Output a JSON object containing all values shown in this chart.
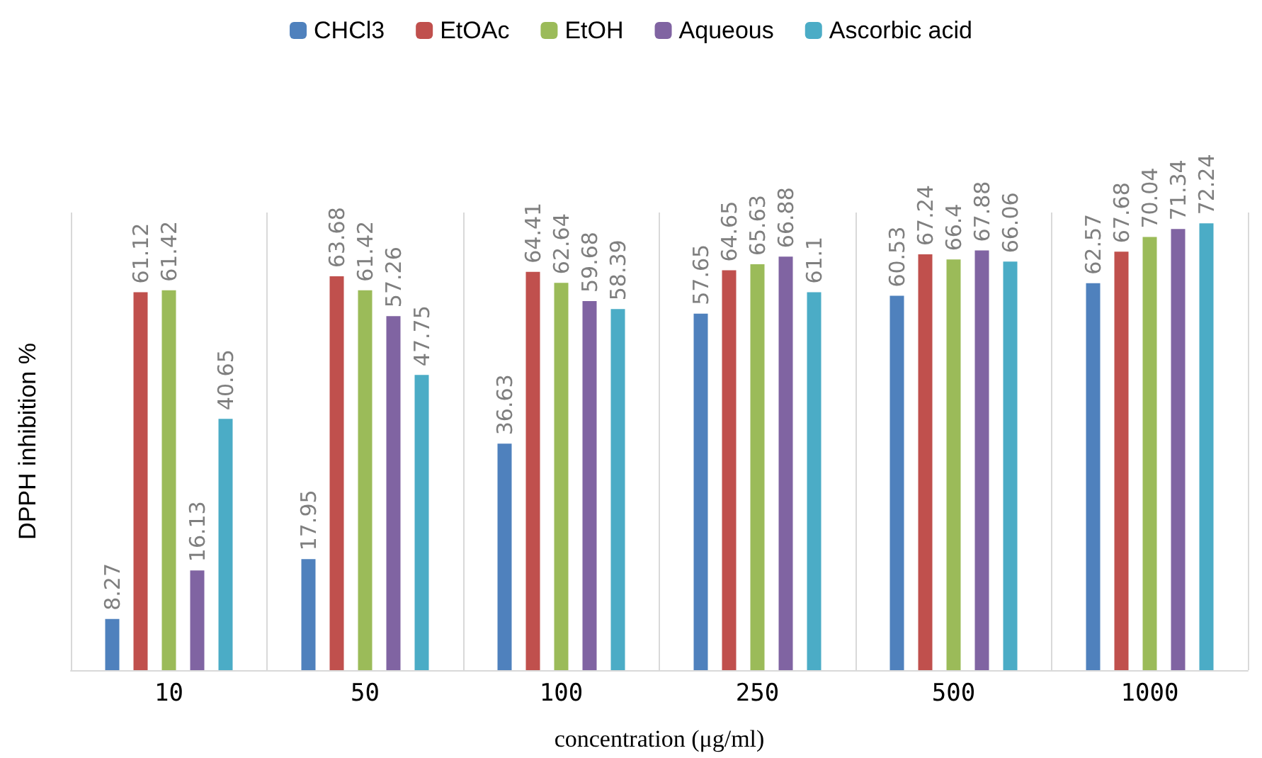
{
  "chart_data": {
    "type": "bar",
    "xlabel": "concentration (μg/ml)",
    "ylabel": "DPPH inhibition %",
    "categories": [
      "10",
      "50",
      "100",
      "250",
      "500",
      "1000"
    ],
    "series": [
      {
        "name": "CHCl3",
        "color": "#4f81bd",
        "values": [
          8.27,
          17.95,
          36.63,
          57.65,
          60.53,
          62.57
        ]
      },
      {
        "name": "EtOAc",
        "color": "#c0504d",
        "values": [
          61.12,
          63.68,
          64.41,
          64.65,
          67.24,
          67.68
        ]
      },
      {
        "name": "EtOH",
        "color": "#9bbb59",
        "values": [
          61.42,
          61.42,
          62.64,
          65.63,
          66.4,
          70.04
        ]
      },
      {
        "name": "Aqueous",
        "color": "#8064a2",
        "values": [
          16.13,
          57.26,
          59.68,
          66.88,
          67.88,
          71.34
        ]
      },
      {
        "name": "Ascorbic acid",
        "color": "#4bacc6",
        "values": [
          40.65,
          47.75,
          58.39,
          61.1,
          66.06,
          72.24
        ]
      }
    ],
    "data_labels": true,
    "grid": "x",
    "legend": "top"
  }
}
